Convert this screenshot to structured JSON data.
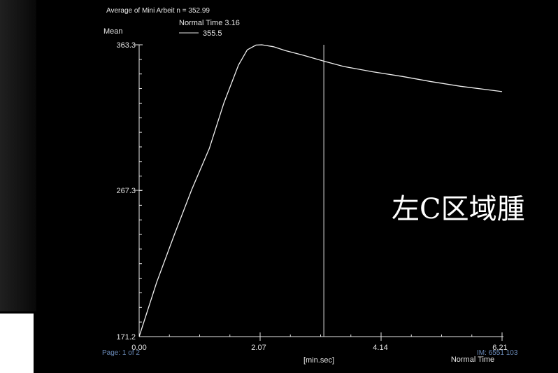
{
  "header": {
    "cutoff_line": "Average of Mini Arbeit    n = 352.99",
    "normal_time_label": "Normal Time 3.16",
    "legend_value": "355.5"
  },
  "chart_data": {
    "type": "line",
    "ylabel": "Mean",
    "xlabel": "[min.sec]",
    "x_axis_name": "Normal Time",
    "ylim": [
      171.2,
      363.3
    ],
    "xlim": [
      0.0,
      6.21
    ],
    "y_ticks": [
      "363.3",
      "267.3",
      "171.2"
    ],
    "x_ticks": [
      "0.00",
      "2.07",
      "4.14",
      "6.21"
    ],
    "cursor_x": 3.16,
    "series": [
      {
        "x": [
          0.0,
          0.3,
          0.6,
          0.9,
          1.2,
          1.45,
          1.7,
          1.85,
          2.0,
          2.1,
          2.3,
          2.5,
          2.8,
          3.16,
          3.5,
          4.0,
          4.5,
          5.0,
          5.5,
          6.21
        ],
        "values": [
          171.2,
          207,
          238,
          268,
          295,
          325,
          350,
          360,
          363.1,
          363.3,
          362,
          359.5,
          356.5,
          352.5,
          349,
          345.5,
          342.5,
          339,
          336,
          332.5
        ]
      }
    ]
  },
  "footer": {
    "page_label": "Page: 1 of 2",
    "im_label": "IM: 6551 103"
  },
  "overlay_text": "左C区域腫"
}
